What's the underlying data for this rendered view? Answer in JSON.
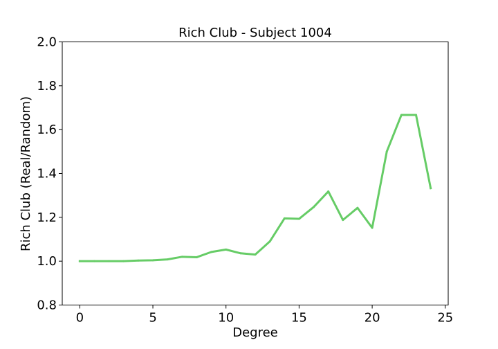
{
  "chart_data": {
    "type": "line",
    "title": "Rich Club - Subject 1004",
    "xlabel": "Degree",
    "ylabel": "Rich Club (Real/Random)",
    "xlim": [
      -1.2,
      25.2
    ],
    "ylim": [
      0.8,
      2.0
    ],
    "xticks": [
      0,
      5,
      10,
      15,
      20,
      25
    ],
    "yticks": [
      0.8,
      1.0,
      1.2,
      1.4,
      1.6,
      1.8,
      2.0
    ],
    "xtick_labels": [
      "0",
      "5",
      "10",
      "15",
      "20",
      "25"
    ],
    "ytick_labels": [
      "0.8",
      "1.0",
      "1.2",
      "1.4",
      "1.6",
      "1.8",
      "2.0"
    ],
    "grid": false,
    "series": [
      {
        "color": "#66cc66",
        "x": [
          0,
          1,
          2,
          3,
          4,
          5,
          6,
          7,
          8,
          9,
          10,
          11,
          12,
          13,
          14,
          15,
          16,
          17,
          18,
          19,
          20,
          21,
          22,
          23,
          24
        ],
        "y": [
          1.0,
          1.0,
          1.0,
          1.0,
          1.003,
          1.004,
          1.008,
          1.02,
          1.018,
          1.042,
          1.053,
          1.036,
          1.03,
          1.09,
          1.195,
          1.193,
          1.247,
          1.318,
          1.188,
          1.243,
          1.152,
          1.5,
          1.667,
          1.667,
          1.333
        ]
      }
    ]
  }
}
